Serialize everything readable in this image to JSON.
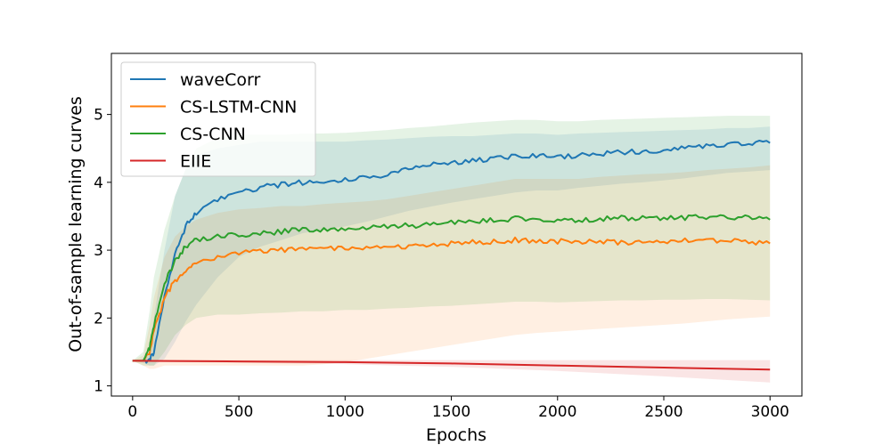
{
  "chart_data": {
    "type": "line",
    "xlabel": "Epochs",
    "ylabel": "Out-of-sample learning curves",
    "xlim": [
      -100,
      3150
    ],
    "ylim": [
      0.85,
      5.9
    ],
    "xticks": [
      "0",
      "500",
      "1000",
      "1500",
      "2000",
      "2500",
      "3000"
    ],
    "yticks": [
      "1",
      "2",
      "3",
      "4",
      "5"
    ],
    "grid": false,
    "legend_position": "top-left",
    "series": [
      {
        "name": "waveCorr",
        "color": "#1f77b4",
        "x": [
          0,
          50,
          80,
          100,
          150,
          200,
          250,
          300,
          400,
          500,
          600,
          700,
          800,
          900,
          1000,
          1100,
          1200,
          1300,
          1400,
          1500,
          1600,
          1700,
          1800,
          1900,
          2000,
          2100,
          2200,
          2300,
          2400,
          2500,
          2600,
          2700,
          2800,
          2900,
          3000
        ],
        "y": [
          1.37,
          1.37,
          1.38,
          1.5,
          2.3,
          2.95,
          3.35,
          3.55,
          3.75,
          3.85,
          3.92,
          3.97,
          4.0,
          4.01,
          4.03,
          4.08,
          4.12,
          4.2,
          4.25,
          4.3,
          4.32,
          4.35,
          4.38,
          4.39,
          4.37,
          4.4,
          4.42,
          4.44,
          4.46,
          4.48,
          4.5,
          4.53,
          4.56,
          4.57,
          4.58
        ],
        "band_upper": [
          1.37,
          1.4,
          1.6,
          2.0,
          3.0,
          3.8,
          4.2,
          4.4,
          4.5,
          4.55,
          4.6,
          4.6,
          4.6,
          4.6,
          4.6,
          4.62,
          4.63,
          4.65,
          4.67,
          4.68,
          4.68,
          4.7,
          4.72,
          4.72,
          4.7,
          4.72,
          4.73,
          4.74,
          4.75,
          4.76,
          4.77,
          4.78,
          4.8,
          4.8,
          4.82
        ],
        "band_lower": [
          1.37,
          1.34,
          1.3,
          1.3,
          1.4,
          1.65,
          1.95,
          2.2,
          2.6,
          2.9,
          3.05,
          3.15,
          3.25,
          3.3,
          3.35,
          3.42,
          3.5,
          3.58,
          3.64,
          3.7,
          3.75,
          3.8,
          3.85,
          3.88,
          3.88,
          3.92,
          3.95,
          3.98,
          4.0,
          4.03,
          4.06,
          4.1,
          4.14,
          4.16,
          4.18
        ]
      },
      {
        "name": "CS-LSTM-CNN",
        "color": "#ff7f0e",
        "x": [
          0,
          50,
          80,
          100,
          150,
          200,
          250,
          300,
          400,
          500,
          600,
          700,
          800,
          900,
          1000,
          1100,
          1200,
          1300,
          1400,
          1500,
          1600,
          1700,
          1800,
          1900,
          2000,
          2100,
          2200,
          2300,
          2400,
          2500,
          2600,
          2700,
          2800,
          2900,
          3000
        ],
        "y": [
          1.37,
          1.37,
          1.5,
          1.8,
          2.3,
          2.55,
          2.7,
          2.8,
          2.9,
          2.95,
          2.98,
          3.0,
          3.0,
          3.02,
          3.03,
          3.02,
          3.04,
          3.06,
          3.08,
          3.1,
          3.12,
          3.13,
          3.15,
          3.14,
          3.13,
          3.12,
          3.12,
          3.11,
          3.12,
          3.12,
          3.14,
          3.15,
          3.15,
          3.12,
          3.1
        ],
        "band_upper": [
          1.37,
          1.45,
          1.9,
          2.3,
          2.9,
          3.2,
          3.35,
          3.45,
          3.55,
          3.6,
          3.62,
          3.65,
          3.65,
          3.68,
          3.7,
          3.72,
          3.75,
          3.8,
          3.85,
          3.9,
          3.95,
          4.0,
          4.05,
          4.05,
          4.05,
          4.05,
          4.08,
          4.1,
          4.12,
          4.13,
          4.15,
          4.18,
          4.2,
          4.22,
          4.25
        ],
        "band_lower": [
          1.37,
          1.3,
          1.25,
          1.25,
          1.3,
          1.3,
          1.3,
          1.3,
          1.3,
          1.3,
          1.3,
          1.3,
          1.3,
          1.32,
          1.35,
          1.4,
          1.45,
          1.5,
          1.55,
          1.6,
          1.65,
          1.7,
          1.75,
          1.78,
          1.8,
          1.82,
          1.84,
          1.86,
          1.88,
          1.9,
          1.92,
          1.95,
          1.98,
          2.0,
          2.02
        ]
      },
      {
        "name": "CS-CNN",
        "color": "#2ca02c",
        "x": [
          0,
          50,
          80,
          100,
          150,
          200,
          250,
          300,
          400,
          500,
          600,
          700,
          800,
          900,
          1000,
          1100,
          1200,
          1300,
          1400,
          1500,
          1600,
          1700,
          1800,
          1900,
          2000,
          2100,
          2200,
          2300,
          2400,
          2500,
          2600,
          2700,
          2800,
          2900,
          3000
        ],
        "y": [
          1.37,
          1.37,
          1.55,
          1.9,
          2.5,
          2.85,
          3.05,
          3.15,
          3.2,
          3.22,
          3.25,
          3.27,
          3.3,
          3.3,
          3.32,
          3.33,
          3.35,
          3.36,
          3.38,
          3.4,
          3.42,
          3.44,
          3.46,
          3.45,
          3.44,
          3.45,
          3.46,
          3.47,
          3.47,
          3.48,
          3.48,
          3.49,
          3.5,
          3.47,
          3.45
        ],
        "band_upper": [
          1.37,
          1.5,
          2.1,
          2.6,
          3.3,
          3.8,
          4.2,
          4.5,
          4.65,
          4.7,
          4.7,
          4.7,
          4.72,
          4.72,
          4.73,
          4.75,
          4.77,
          4.8,
          4.82,
          4.85,
          4.88,
          4.9,
          4.92,
          4.92,
          4.9,
          4.9,
          4.92,
          4.93,
          4.94,
          4.95,
          4.96,
          4.97,
          4.98,
          4.98,
          4.98
        ],
        "band_lower": [
          1.37,
          1.3,
          1.3,
          1.3,
          1.5,
          1.75,
          1.9,
          2.0,
          2.05,
          2.05,
          2.07,
          2.08,
          2.1,
          2.1,
          2.12,
          2.12,
          2.14,
          2.15,
          2.17,
          2.18,
          2.2,
          2.22,
          2.24,
          2.24,
          2.23,
          2.24,
          2.25,
          2.26,
          2.26,
          2.27,
          2.27,
          2.28,
          2.28,
          2.27,
          2.26
        ]
      },
      {
        "name": "EIIE",
        "color": "#d62728",
        "x": [
          0,
          500,
          1000,
          1500,
          2000,
          2500,
          3000
        ],
        "y": [
          1.37,
          1.36,
          1.35,
          1.33,
          1.3,
          1.27,
          1.24
        ],
        "band_upper": [
          1.38,
          1.38,
          1.38,
          1.38,
          1.38,
          1.38,
          1.38
        ],
        "band_lower": [
          1.36,
          1.34,
          1.32,
          1.28,
          1.22,
          1.14,
          1.05
        ]
      }
    ]
  }
}
